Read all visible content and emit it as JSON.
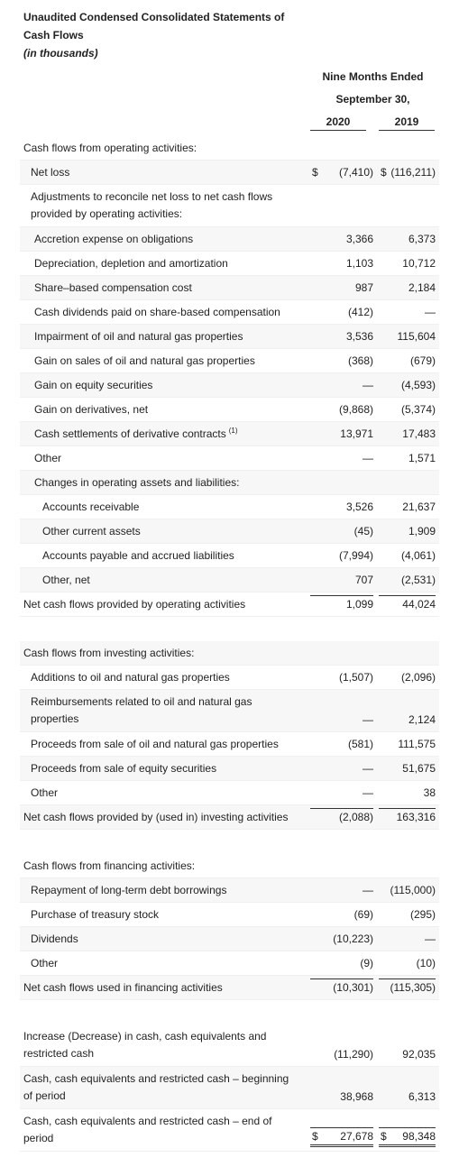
{
  "header": {
    "title": [
      "Unaudited Condensed Consolidated Statements of",
      "Cash Flows"
    ],
    "unit": "(in thousands)",
    "period": "Nine Months Ended",
    "period_date": "September 30,",
    "years": [
      "2020",
      "2019"
    ]
  },
  "currency": "$",
  "sections": [
    {
      "heading": "Cash flows from operating activities:",
      "rows": [
        {
          "label": "Net loss",
          "indent": 1,
          "currency": true,
          "values": [
            "(7,410)",
            "(116,211)"
          ]
        },
        {
          "label": [
            "Adjustments to reconcile net loss to net cash flows",
            "provided by operating activities:"
          ],
          "indent": 1
        },
        {
          "label": "Accretion expense on obligations",
          "indent": 2,
          "values": [
            "3,366",
            "6,373"
          ]
        },
        {
          "label": "Depreciation, depletion and amortization",
          "indent": 2,
          "values": [
            "1,103",
            "10,712"
          ]
        },
        {
          "label": "Share–based compensation cost",
          "indent": 2,
          "values": [
            "987",
            "2,184"
          ]
        },
        {
          "label": "Cash dividends paid on share-based compensation",
          "indent": 2,
          "values": [
            "(412)",
            "—"
          ]
        },
        {
          "label": "Impairment of oil and natural gas properties",
          "indent": 2,
          "values": [
            "3,536",
            "115,604"
          ]
        },
        {
          "label": "Gain on sales of oil and natural gas properties",
          "indent": 2,
          "values": [
            "(368)",
            "(679)"
          ]
        },
        {
          "label": "Gain on equity securities",
          "indent": 2,
          "values": [
            "—",
            "(4,593)"
          ]
        },
        {
          "label": "Gain on derivatives, net",
          "indent": 2,
          "values": [
            "(9,868)",
            "(5,374)"
          ]
        },
        {
          "label": "Cash settlements of derivative contracts",
          "note": "(1)",
          "indent": 2,
          "values": [
            "13,971",
            "17,483"
          ]
        },
        {
          "label": "Other",
          "indent": 2,
          "values": [
            "—",
            "1,571"
          ]
        },
        {
          "label": "Changes in operating assets and liabilities:",
          "indent": 2
        },
        {
          "label": "Accounts receivable",
          "indent": 3,
          "values": [
            "3,526",
            "21,637"
          ]
        },
        {
          "label": "Other current assets",
          "indent": 3,
          "values": [
            "(45)",
            "1,909"
          ]
        },
        {
          "label": "Accounts payable and accrued liabilities",
          "indent": 3,
          "values": [
            "(7,994)",
            "(4,061)"
          ]
        },
        {
          "label": "Other, net",
          "indent": 3,
          "values": [
            "707",
            "(2,531)"
          ]
        },
        {
          "label": "Net cash flows provided by operating activities",
          "indent": 0,
          "total": true,
          "values": [
            "1,099",
            "44,024"
          ]
        }
      ]
    },
    {
      "heading": "Cash flows from investing activities:",
      "rows": [
        {
          "label": "Additions to oil and natural gas properties",
          "indent": 1,
          "values": [
            "(1,507)",
            "(2,096)"
          ]
        },
        {
          "label": [
            "Reimbursements related to oil and natural gas",
            "properties"
          ],
          "indent": 1,
          "values": [
            "—",
            "2,124"
          ]
        },
        {
          "label": "Proceeds from sale of oil and natural gas properties",
          "indent": 1,
          "values": [
            "(581)",
            "111,575"
          ]
        },
        {
          "label": "Proceeds from sale of equity securities",
          "indent": 1,
          "values": [
            "—",
            "51,675"
          ]
        },
        {
          "label": "Other",
          "indent": 1,
          "values": [
            "—",
            "38"
          ]
        },
        {
          "label": "Net cash flows provided by (used in) investing activities",
          "indent": 0,
          "total": true,
          "values": [
            "(2,088)",
            "163,316"
          ]
        }
      ]
    },
    {
      "heading": "Cash flows from financing activities:",
      "rows": [
        {
          "label": "Repayment of long-term debt borrowings",
          "indent": 1,
          "values": [
            "—",
            "(115,000)"
          ]
        },
        {
          "label": "Purchase of treasury stock",
          "indent": 1,
          "values": [
            "(69)",
            "(295)"
          ]
        },
        {
          "label": "Dividends",
          "indent": 1,
          "values": [
            "(10,223)",
            "—"
          ]
        },
        {
          "label": "Other",
          "indent": 1,
          "values": [
            "(9)",
            "(10)"
          ]
        },
        {
          "label": "Net cash flows used in financing activities",
          "indent": 0,
          "total": true,
          "values": [
            "(10,301)",
            "(115,305)"
          ]
        }
      ]
    },
    {
      "rows": [
        {
          "label": [
            "Increase (Decrease) in cash, cash equivalents and",
            "restricted cash"
          ],
          "indent": 0,
          "values": [
            "(11,290)",
            "92,035"
          ]
        },
        {
          "label": [
            "Cash, cash equivalents and restricted cash – beginning",
            "of period"
          ],
          "indent": 0,
          "values": [
            "38,968",
            "6,313"
          ]
        },
        {
          "label": [
            "Cash, cash equivalents and restricted cash – end of",
            "period"
          ],
          "indent": 0,
          "currency": true,
          "total": true,
          "grand": true,
          "values": [
            "27,678",
            "98,348"
          ]
        }
      ]
    }
  ]
}
